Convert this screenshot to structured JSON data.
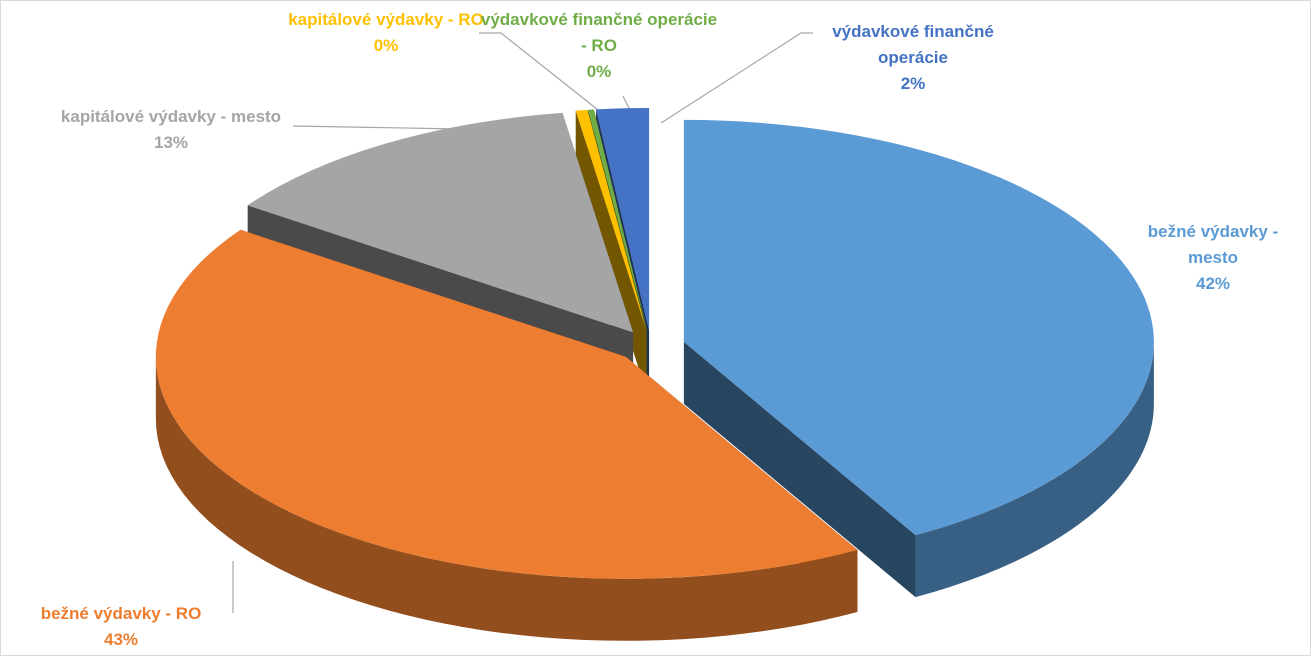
{
  "chart_data": {
    "type": "pie",
    "categories": [
      "bežné výdavky - mesto",
      "bežné výdavky - RO",
      "kapitálové výdavky - mesto",
      "kapitálové výdavky - RO",
      "výdavkové finančné operácie - RO",
      "výdavkové finančné operácie"
    ],
    "values": [
      41.8,
      42.9,
      12.9,
      0.4,
      0.2,
      1.8
    ],
    "value_labels": [
      "42%",
      "43%",
      "13%",
      "0%",
      "0%",
      "2%"
    ],
    "colors": [
      "#5b9bd5",
      "#ed7d31",
      "#a5a5a5",
      "#ffc000",
      "#70ad47",
      "#4472c4"
    ],
    "three_d": true,
    "exploded": true
  }
}
